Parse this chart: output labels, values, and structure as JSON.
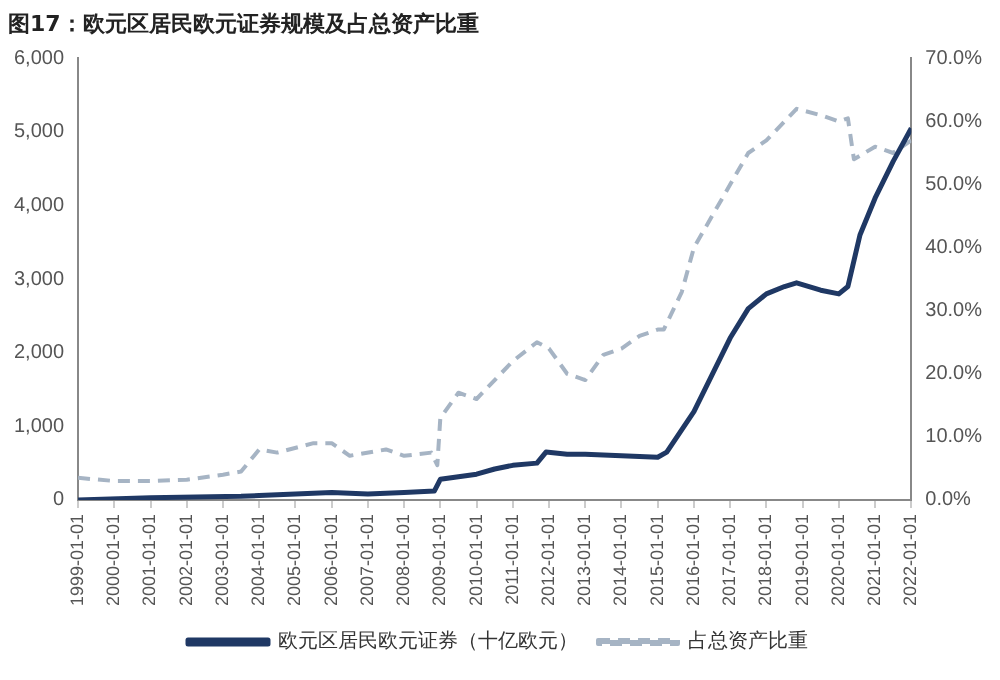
{
  "chart_data": {
    "type": "line",
    "title": "图17：欧元区居民欧元证券规模及占总资产比重",
    "xlim": [
      "1999-01-01",
      "2022-01-01"
    ],
    "xticks": [
      "1999-01-01",
      "2000-01-01",
      "2001-01-01",
      "2002-01-01",
      "2003-01-01",
      "2004-01-01",
      "2005-01-01",
      "2006-01-01",
      "2007-01-01",
      "2008-01-01",
      "2009-01-01",
      "2010-01-01",
      "2011-01-01",
      "2012-01-01",
      "2013-01-01",
      "2014-01-01",
      "2015-01-01",
      "2016-01-01",
      "2017-01-01",
      "2018-01-01",
      "2019-01-01",
      "2020-01-01",
      "2021-01-01",
      "2022-01-01"
    ],
    "ylim": [
      0,
      6000
    ],
    "yticks": [
      0,
      {
        "value": 1000,
        "label": "1,000"
      },
      {
        "value": 2000,
        "label": "2,000"
      },
      {
        "value": 3000,
        "label": "3,000"
      },
      {
        "value": 4000,
        "label": "4,000"
      },
      {
        "value": 5000,
        "label": "5,000"
      },
      {
        "value": 6000,
        "label": "6,000"
      }
    ],
    "y2lim": [
      0,
      70
    ],
    "y2ticks": [
      {
        "value": 0,
        "label": "0.0%"
      },
      {
        "value": 10,
        "label": "10.0%"
      },
      {
        "value": 20,
        "label": "20.0%"
      },
      {
        "value": 30,
        "label": "30.0%"
      },
      {
        "value": 40,
        "label": "40.0%"
      },
      {
        "value": 50,
        "label": "50.0%"
      },
      {
        "value": 60,
        "label": "60.0%"
      },
      {
        "value": 70,
        "label": "70.0%"
      }
    ],
    "grid": false,
    "legend": "bottom",
    "marker": "none",
    "series": [
      {
        "name": "欧元区居民欧元证券（十亿欧元）",
        "color": "#1f3864",
        "line_style": "solid",
        "x": [
          "1999-01",
          "2001-01",
          "2003-07",
          "2004-01",
          "2005-01",
          "2006-01",
          "2007-01",
          "2008-01",
          "2008-11",
          "2009-01",
          "2010-01",
          "2010-07",
          "2011-01",
          "2011-09",
          "2011-12",
          "2012-07",
          "2013-01",
          "2014-01",
          "2015-01",
          "2015-04",
          "2016-01",
          "2016-07",
          "2017-01",
          "2017-07",
          "2018-01",
          "2018-07",
          "2018-11",
          "2019-07",
          "2020-01",
          "2020-04",
          "2020-08",
          "2021-01",
          "2021-07",
          "2022-01"
        ],
        "values": [
          0,
          30,
          50,
          60,
          80,
          100,
          80,
          100,
          120,
          280,
          350,
          420,
          470,
          500,
          650,
          620,
          620,
          600,
          580,
          650,
          1200,
          1700,
          2200,
          2600,
          2800,
          2900,
          2950,
          2850,
          2800,
          2900,
          3600,
          4100,
          4600,
          5050
        ]
      },
      {
        "name": "占总资产比重",
        "color": "#a6b4c4",
        "line_style": "dashed",
        "axis": "y2",
        "x": [
          "1999-01",
          "2000-01",
          "2001-01",
          "2002-01",
          "2003-01",
          "2003-07",
          "2004-01",
          "2004-07",
          "2005-07",
          "2006-01",
          "2006-07",
          "2007-07",
          "2008-01",
          "2008-10",
          "2008-12",
          "2009-01",
          "2009-07",
          "2010-01",
          "2010-07",
          "2011-01",
          "2011-09",
          "2012-01",
          "2012-07",
          "2013-01",
          "2013-07",
          "2014-01",
          "2014-07",
          "2015-01",
          "2015-03",
          "2015-09",
          "2016-01",
          "2016-07",
          "2017-01",
          "2017-07",
          "2018-01",
          "2018-07",
          "2018-11",
          "2019-07",
          "2020-01",
          "2020-04",
          "2020-06",
          "2021-01",
          "2021-07",
          "2022-01"
        ],
        "values": [
          3.5,
          3,
          3,
          3.2,
          4,
          4.5,
          8,
          7.5,
          9,
          9,
          7,
          8,
          7,
          7.5,
          5.5,
          13,
          17,
          16,
          19,
          22,
          25,
          24,
          20,
          19,
          23,
          24,
          26,
          27,
          27,
          33,
          40,
          45,
          50,
          55,
          57,
          60,
          62,
          61,
          60,
          60.5,
          54,
          56,
          55,
          57
        ]
      }
    ]
  }
}
